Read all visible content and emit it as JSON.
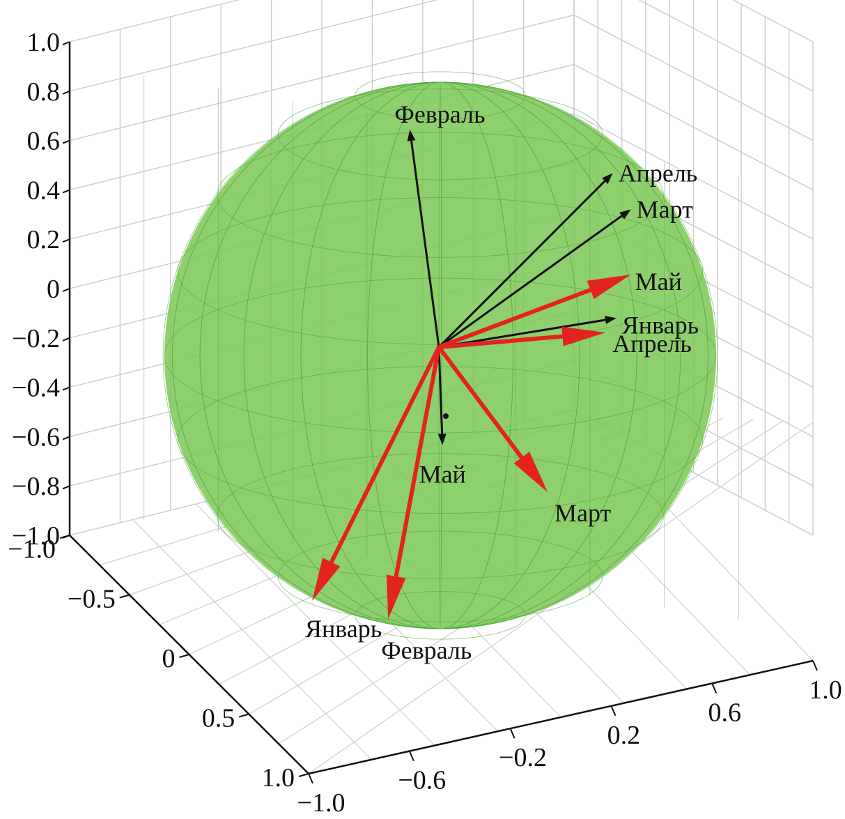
{
  "chart_data": {
    "type": "3d-vector",
    "title": "",
    "xlabel": "",
    "ylabel": "",
    "zlabel": "",
    "grid": true,
    "sphere": {
      "radius": 1.0,
      "color": "#7ec85a"
    },
    "axes": {
      "z_ticks": [
        "1.0",
        "0.8",
        "0.6",
        "0.4",
        "0.2",
        "0",
        "−0.2",
        "−0.4",
        "−0.6",
        "−0.8",
        "−1.0"
      ],
      "left_ticks": [
        "−1.0",
        "−0.5",
        "0",
        "0.5",
        "1.0"
      ],
      "bottom_ticks": [
        "−1.0",
        "−0.6",
        "−0.2",
        "0.2",
        "0.6",
        "1.0"
      ],
      "zlim": [
        -1.0,
        1.0
      ],
      "left_lim": [
        -1.0,
        1.0
      ],
      "bottom_lim": [
        -1.0,
        1.0
      ]
    },
    "series": [
      {
        "color": "#111111",
        "vectors": [
          {
            "label": "Февраль",
            "to": [
              -0.08,
              0.6
            ]
          },
          {
            "label": "Апрель",
            "to": [
              0.48,
              0.48
            ]
          },
          {
            "label": "Март",
            "to": [
              0.53,
              0.38
            ]
          },
          {
            "label": "Январь",
            "to": [
              0.49,
              0.08
            ]
          },
          {
            "label": "Май",
            "to": [
              0.01,
              -0.27
            ]
          }
        ]
      },
      {
        "color": "#e3231f",
        "vectors": [
          {
            "label": "Май",
            "to": [
              0.53,
              0.2
            ]
          },
          {
            "label": "Апрель",
            "to": [
              0.46,
              0.04
            ]
          },
          {
            "label": "Март",
            "to": [
              0.3,
              -0.4
            ]
          },
          {
            "label": "Январь",
            "to": [
              -0.35,
              -0.7
            ]
          },
          {
            "label": "Февраль",
            "to": [
              -0.14,
              -0.75
            ]
          }
        ]
      }
    ]
  }
}
